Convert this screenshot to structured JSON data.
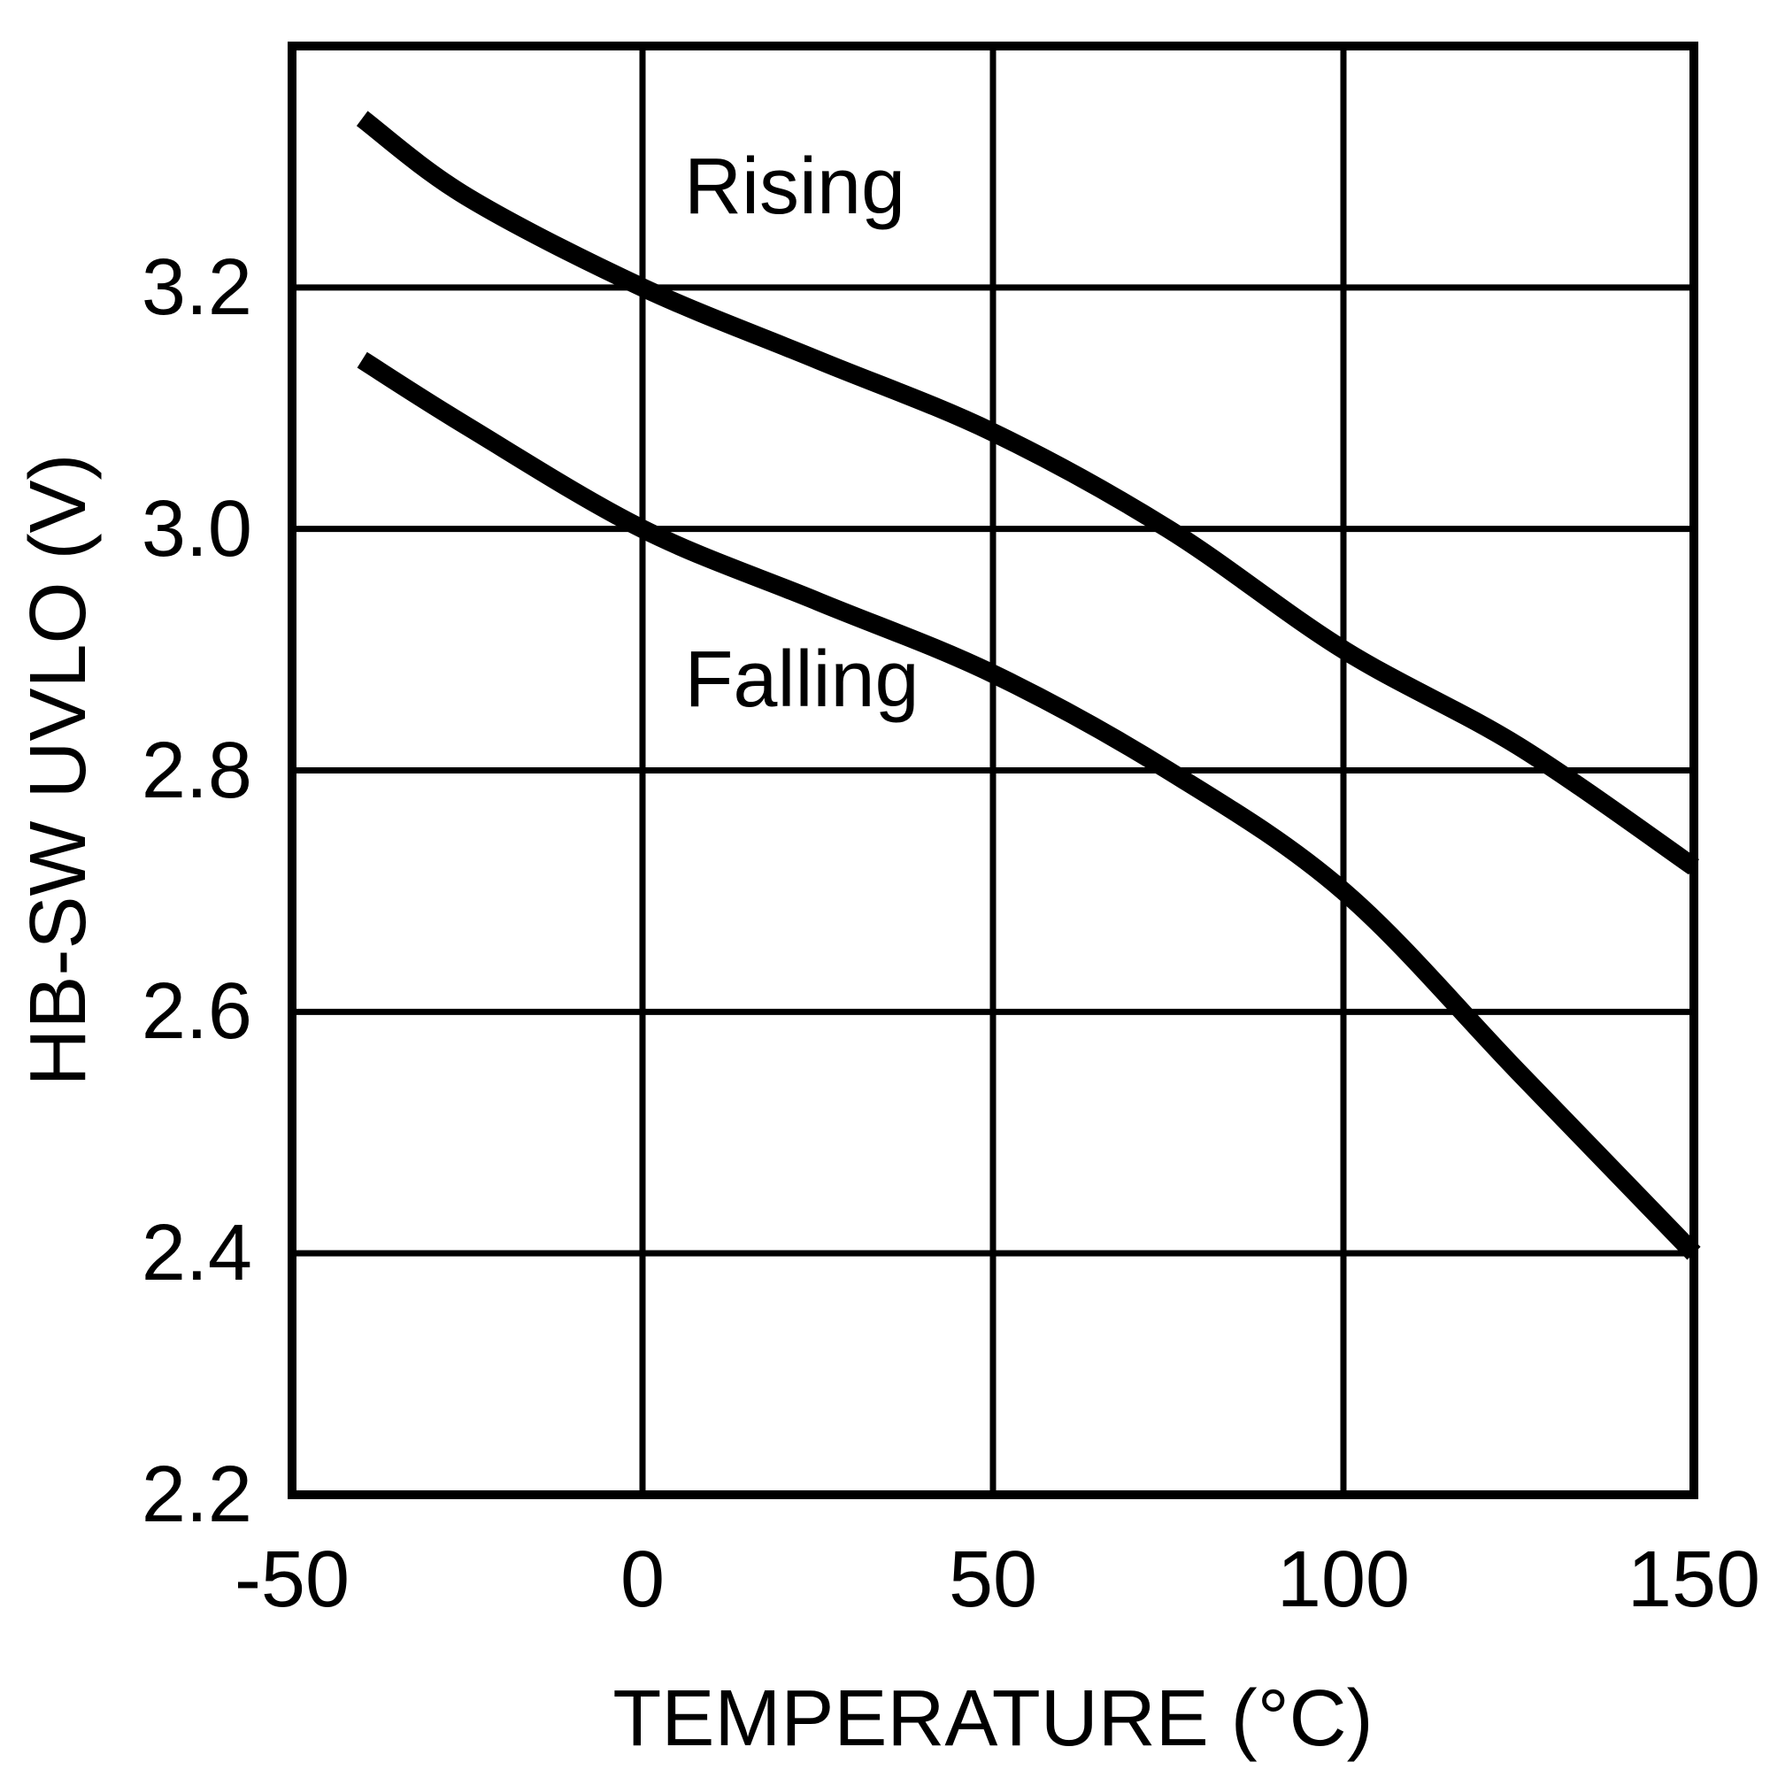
{
  "chart_data": {
    "type": "line",
    "title": "",
    "xlabel": "TEMPERATURE (°C)",
    "ylabel": "HB-SW UVLO (V)",
    "xlim": [
      -50,
      150
    ],
    "ylim": [
      2.2,
      3.4
    ],
    "grid": true,
    "legend": "inline-curve-labels",
    "x_tick_values": [
      -50,
      0,
      50,
      100,
      150
    ],
    "x_tick_labels": [
      "-50",
      "0",
      "50",
      "100",
      "150"
    ],
    "y_tick_values": [
      2.2,
      2.4,
      2.6,
      2.8,
      3.0,
      3.2
    ],
    "y_tick_labels": [
      "2.2",
      "2.4",
      "2.6",
      "2.8",
      "3.0",
      "3.2"
    ],
    "x_gridline_values": [
      -50,
      0,
      50,
      100,
      150
    ],
    "y_gridline_values": [
      2.2,
      2.4,
      2.6,
      2.8,
      3.0,
      3.2,
      3.4
    ],
    "series": [
      {
        "name": "Rising",
        "x": [
          -40,
          -25,
          0,
          25,
          50,
          75,
          100,
          125,
          150
        ],
        "y": [
          3.34,
          3.275,
          3.2,
          3.14,
          3.08,
          3.0,
          2.9,
          2.82,
          2.72
        ]
      },
      {
        "name": "Falling",
        "x": [
          -40,
          -25,
          0,
          25,
          50,
          75,
          100,
          125,
          150
        ],
        "y": [
          3.14,
          3.085,
          3.0,
          2.94,
          2.88,
          2.8,
          2.7,
          2.55,
          2.4
        ]
      }
    ],
    "colors": {
      "curve": "#000000",
      "grid": "#000000",
      "background": "#ffffff",
      "text": "#000000"
    }
  }
}
